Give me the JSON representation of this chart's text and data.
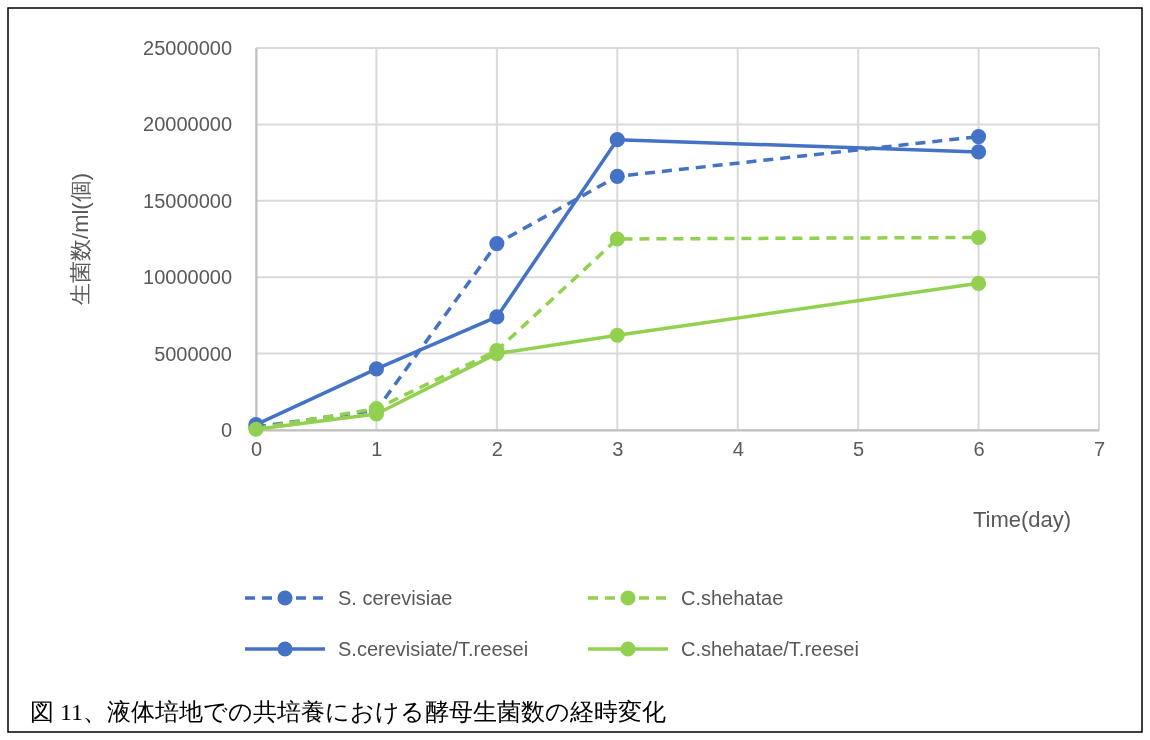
{
  "chart_data": {
    "type": "line",
    "ylabel": "生菌数/ml(個)",
    "xlabel": "Time(day)",
    "annotations": [
      "図 11、液体培地での共培養における酵母生菌数の経時変化"
    ],
    "x": [
      0,
      1,
      2,
      3,
      6
    ],
    "series": [
      {
        "name": "S. cerevisiae",
        "color": "#4472c4",
        "line_style": "dashed",
        "values": [
          200000,
          1300000,
          12200000,
          16600000,
          19200000
        ]
      },
      {
        "name": "C.shehatae",
        "color": "#92d050",
        "line_style": "dashed",
        "values": [
          100000,
          1400000,
          5200000,
          12500000,
          12600000
        ]
      },
      {
        "name": "S.cerevisiate/T.reesei",
        "color": "#4472c4",
        "line_style": "solid",
        "values": [
          350000,
          4000000,
          7400000,
          19000000,
          18200000
        ]
      },
      {
        "name": "C.shehatae/T.reesei",
        "color": "#92d050",
        "line_style": "solid",
        "values": [
          50000,
          1050000,
          5000000,
          6200000,
          9600000
        ]
      }
    ],
    "xlim": [
      0,
      7
    ],
    "xticks": [
      0,
      1,
      2,
      3,
      4,
      5,
      6,
      7
    ],
    "ylim": [
      0,
      25000000
    ],
    "yticks": [
      0,
      5000000,
      10000000,
      15000000,
      20000000,
      25000000
    ],
    "grid": true,
    "legend": "bottom",
    "marker": "circle"
  }
}
